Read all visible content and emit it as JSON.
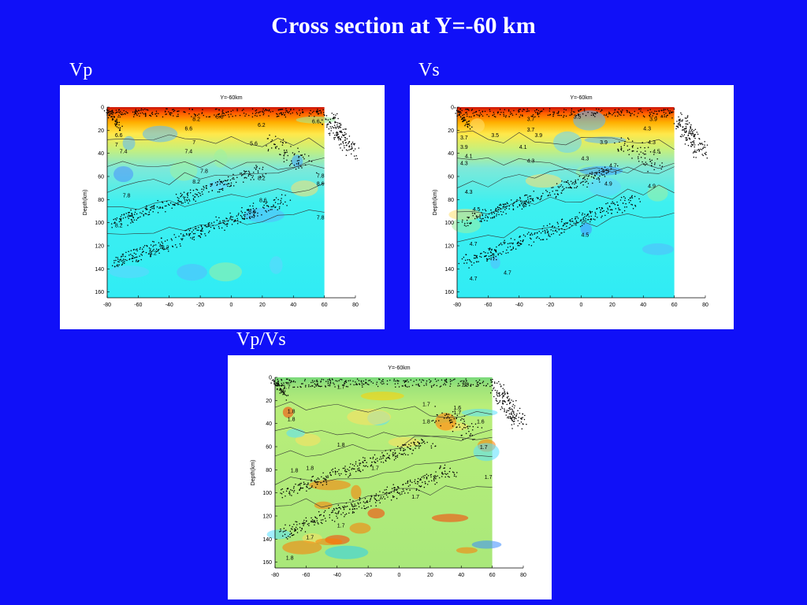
{
  "slide": {
    "title": "Cross section at Y=-60 km",
    "background": "#1010f8"
  },
  "chart_data": [
    {
      "type": "heatmap",
      "panel_label": "Vp",
      "title": "Y=-60km",
      "xlabel": "",
      "ylabel": "Depth(km)",
      "xlim": [
        -80,
        80
      ],
      "ylim": [
        0,
        165
      ],
      "y_reversed": true,
      "x_ticks": [
        "-80",
        "-60",
        "-40",
        "-20",
        "0",
        "20",
        "40",
        "60",
        "80"
      ],
      "y_ticks": [
        "0",
        "20",
        "40",
        "60",
        "80",
        "100",
        "120",
        "140",
        "160"
      ],
      "contour_labels": [
        {
          "text": "6.6",
          "x": -75,
          "y": 26
        },
        {
          "text": "7",
          "x": -75,
          "y": 34
        },
        {
          "text": "7.4",
          "x": -72,
          "y": 40
        },
        {
          "text": "6.6",
          "x": -30,
          "y": 20
        },
        {
          "text": "7",
          "x": -25,
          "y": 32
        },
        {
          "text": "7.4",
          "x": -30,
          "y": 40
        },
        {
          "text": "7.8",
          "x": -20,
          "y": 57
        },
        {
          "text": "8.2",
          "x": -25,
          "y": 66
        },
        {
          "text": "7.8",
          "x": -70,
          "y": 78
        },
        {
          "text": "8.2",
          "x": -75,
          "y": 104
        },
        {
          "text": "8.2",
          "x": -53,
          "y": 128
        },
        {
          "text": "8.2",
          "x": -45,
          "y": 123
        },
        {
          "text": "8.2",
          "x": -25,
          "y": 12
        },
        {
          "text": "5.8",
          "x": -10,
          "y": 10
        },
        {
          "text": "6.2",
          "x": 17,
          "y": 17
        },
        {
          "text": "5.6",
          "x": 12,
          "y": 33
        },
        {
          "text": "8.2",
          "x": 17,
          "y": 63
        },
        {
          "text": "8.6",
          "x": 18,
          "y": 82
        },
        {
          "text": "8.6",
          "x": 11,
          "y": 92
        },
        {
          "text": "7.8",
          "x": 55,
          "y": 61
        },
        {
          "text": "8.6",
          "x": 55,
          "y": 68
        },
        {
          "text": "7.8",
          "x": 55,
          "y": 97
        },
        {
          "text": "6.6",
          "x": 52,
          "y": 14
        }
      ],
      "color_scale": "jet, red = low velocity at shallow depth, cyan = high"
    },
    {
      "type": "heatmap",
      "panel_label": "Vs",
      "title": "Y=-60km",
      "xlabel": "",
      "ylabel": "Depth(km)",
      "xlim": [
        -80,
        80
      ],
      "ylim": [
        0,
        165
      ],
      "y_reversed": true,
      "x_ticks": [
        "-80",
        "-60",
        "-40",
        "-20",
        "0",
        "20",
        "40",
        "60",
        "80"
      ],
      "y_ticks": [
        "0",
        "20",
        "40",
        "60",
        "80",
        "100",
        "120",
        "140",
        "160"
      ],
      "contour_labels": [
        {
          "text": "3.7",
          "x": -78,
          "y": 28
        },
        {
          "text": "3.5",
          "x": -58,
          "y": 26
        },
        {
          "text": "3.9",
          "x": -78,
          "y": 36
        },
        {
          "text": "4.1",
          "x": -75,
          "y": 44
        },
        {
          "text": "4.3",
          "x": -78,
          "y": 50
        },
        {
          "text": "3.7",
          "x": -35,
          "y": 12
        },
        {
          "text": "3.7",
          "x": -35,
          "y": 21
        },
        {
          "text": "3.9",
          "x": -30,
          "y": 26
        },
        {
          "text": "4.1",
          "x": -40,
          "y": 36
        },
        {
          "text": "4.3",
          "x": -35,
          "y": 48
        },
        {
          "text": "3.5",
          "x": -5,
          "y": 10
        },
        {
          "text": "3.9",
          "x": 12,
          "y": 32
        },
        {
          "text": "4.3",
          "x": 0,
          "y": 46
        },
        {
          "text": "4.3",
          "x": -75,
          "y": 75
        },
        {
          "text": "4.5",
          "x": -70,
          "y": 90
        },
        {
          "text": "4.7",
          "x": -72,
          "y": 120
        },
        {
          "text": "4.7",
          "x": -50,
          "y": 145
        },
        {
          "text": "4.7",
          "x": -72,
          "y": 150
        },
        {
          "text": "4.5",
          "x": 0,
          "y": 112
        },
        {
          "text": "4.7",
          "x": 18,
          "y": 52
        },
        {
          "text": "4.5",
          "x": 13,
          "y": 57
        },
        {
          "text": "4.9",
          "x": 15,
          "y": 68
        },
        {
          "text": "4.9",
          "x": 43,
          "y": 70
        },
        {
          "text": "4.3",
          "x": 43,
          "y": 32
        },
        {
          "text": "4.5",
          "x": 46,
          "y": 40
        },
        {
          "text": "4.3",
          "x": 40,
          "y": 20
        },
        {
          "text": "3.9",
          "x": 44,
          "y": 12
        }
      ],
      "color_scale": "jet, red = low velocity at shallow depth, cyan/blue = high"
    },
    {
      "type": "heatmap",
      "panel_label": "Vp/Vs",
      "title": "Y=-60km",
      "xlabel": "",
      "ylabel": "Depth(km)",
      "xlim": [
        -80,
        80
      ],
      "ylim": [
        0,
        165
      ],
      "y_reversed": true,
      "x_ticks": [
        "-80",
        "-60",
        "-40",
        "-20",
        "0",
        "20",
        "40",
        "60",
        "80"
      ],
      "y_ticks": [
        "0",
        "20",
        "40",
        "60",
        "80",
        "100",
        "120",
        "140",
        "160"
      ],
      "contour_labels": [
        {
          "text": "1.7",
          "x": -75,
          "y": 10
        },
        {
          "text": "1.8",
          "x": -72,
          "y": 31
        },
        {
          "text": "1.8",
          "x": -72,
          "y": 38
        },
        {
          "text": "1.7",
          "x": -40,
          "y": 10
        },
        {
          "text": "1.8",
          "x": -40,
          "y": 60
        },
        {
          "text": "1.8",
          "x": -70,
          "y": 82
        },
        {
          "text": "1.8",
          "x": -60,
          "y": 80
        },
        {
          "text": "1.7",
          "x": -18,
          "y": 80
        },
        {
          "text": "1.8",
          "x": 15,
          "y": 40
        },
        {
          "text": "1.7",
          "x": 15,
          "y": 25
        },
        {
          "text": "1.7",
          "x": 35,
          "y": 32
        },
        {
          "text": "1.8",
          "x": 40,
          "y": 8
        },
        {
          "text": "1.6",
          "x": 35,
          "y": 28
        },
        {
          "text": "1.6",
          "x": 50,
          "y": 40
        },
        {
          "text": "1.7",
          "x": 52,
          "y": 62
        },
        {
          "text": "1.7",
          "x": 55,
          "y": 88
        },
        {
          "text": "1.7",
          "x": 8,
          "y": 105
        },
        {
          "text": "1.7",
          "x": -60,
          "y": 140
        },
        {
          "text": "1.7",
          "x": -40,
          "y": 130
        },
        {
          "text": "1.8",
          "x": -73,
          "y": 158
        }
      ],
      "color_scale": "jet, red = low ratio, blue = high ratio"
    }
  ]
}
